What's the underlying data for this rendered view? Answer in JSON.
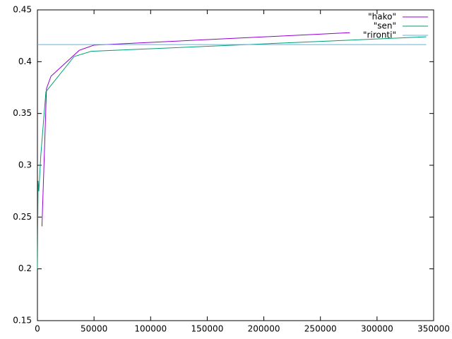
{
  "chart_data": {
    "type": "line",
    "series": [
      {
        "name": "\"hako\"",
        "color": "#9400d3",
        "x": [
          4000,
          8000,
          12000,
          37000,
          50000,
          276000
        ],
        "values": [
          0.241,
          0.374,
          0.386,
          0.411,
          0.416,
          0.428
        ]
      },
      {
        "name": "\"sen\"",
        "color": "#009e73",
        "x": [
          0,
          600,
          1250,
          3000,
          7500,
          32400,
          47400,
          343500
        ],
        "values": [
          0.2,
          0.285,
          0.275,
          0.31,
          0.371,
          0.405,
          0.41,
          0.424
        ]
      },
      {
        "name": "\"rironti\"",
        "color": "#56b4e9",
        "x": [
          0,
          343500
        ],
        "values": [
          0.4165,
          0.4165
        ]
      }
    ],
    "xlim": [
      0,
      350000
    ],
    "xticks": [
      0,
      50000,
      100000,
      150000,
      200000,
      250000,
      300000,
      350000
    ],
    "ylim": [
      0.15,
      0.45
    ],
    "yticks": [
      0.15,
      0.2,
      0.25,
      0.3,
      0.35,
      0.4,
      0.45
    ],
    "legend": "top-right"
  }
}
